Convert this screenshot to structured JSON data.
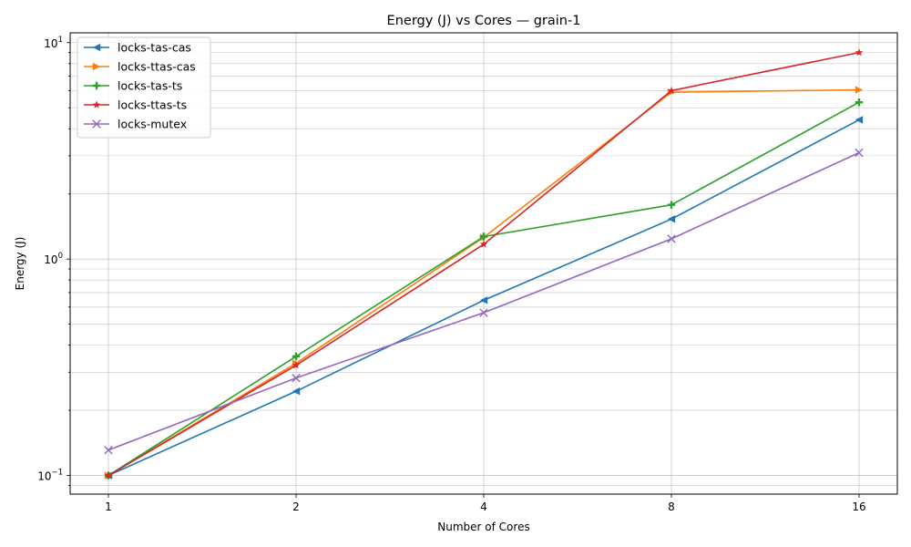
{
  "chart_data": {
    "type": "line",
    "title": "Energy (J) vs Cores — grain-1",
    "xlabel": "Number of Cores",
    "ylabel": "Energy (J)",
    "x": [
      1,
      2,
      4,
      8,
      16
    ],
    "x_scale": "log2",
    "y_scale": "log10",
    "ylim": [
      0.082,
      11.1
    ],
    "grid": true,
    "legend_position": "top-left",
    "x_tick_labels": [
      "1",
      "2",
      "4",
      "8",
      "16"
    ],
    "y_tick_labels": [
      {
        "base": "10",
        "exp": "−1",
        "value": 0.1
      },
      {
        "base": "10",
        "exp": "0",
        "value": 1
      },
      {
        "base": "10",
        "exp": "1",
        "value": 10
      }
    ],
    "series": [
      {
        "name": "locks-tas-cas",
        "color": "#1f77b4",
        "marker": "triangle-left",
        "values": [
          0.1,
          0.245,
          0.645,
          1.53,
          4.4
        ]
      },
      {
        "name": "locks-ttas-cas",
        "color": "#ff7f0e",
        "marker": "triangle-right",
        "values": [
          0.1,
          0.33,
          1.26,
          5.9,
          6.05
        ]
      },
      {
        "name": "locks-tas-ts",
        "color": "#2ca02c",
        "marker": "plus",
        "values": [
          0.1,
          0.355,
          1.27,
          1.78,
          5.3
        ]
      },
      {
        "name": "locks-ttas-ts",
        "color": "#d62728",
        "marker": "star",
        "values": [
          0.1,
          0.323,
          1.17,
          6.0,
          9.0
        ]
      },
      {
        "name": "locks-mutex",
        "color": "#9467bd",
        "marker": "x",
        "values": [
          0.131,
          0.282,
          0.565,
          1.24,
          3.1
        ]
      }
    ]
  }
}
